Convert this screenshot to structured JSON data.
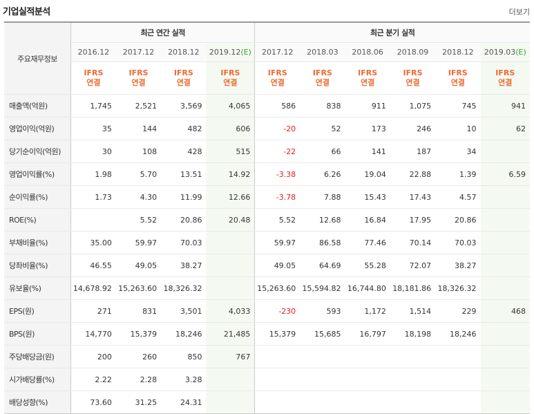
{
  "header": {
    "title": "기업실적분석",
    "more": "더보기"
  },
  "table": {
    "label_header": "주요재무정보",
    "annual_group": "최근 연간 실적",
    "quarter_group": "최근 분기 실적",
    "annual_periods": [
      "2016.12",
      "2017.12",
      "2018.12",
      "2019.12"
    ],
    "annual_estimate_mark": "(E)",
    "quarter_periods": [
      "2017.12",
      "2018.03",
      "2018.06",
      "2018.09",
      "2018.12",
      "2019.03"
    ],
    "quarter_estimate_mark": "(E)",
    "ifrs_top": "IFRS",
    "ifrs_bottom": "연결",
    "rows": [
      {
        "label": "매출액(억원)",
        "annual": [
          "1,745",
          "2,521",
          "3,569",
          "4,065"
        ],
        "quarter": [
          "586",
          "838",
          "911",
          "1,075",
          "745",
          "941"
        ]
      },
      {
        "label": "영업이익(억원)",
        "annual": [
          "35",
          "144",
          "482",
          "606"
        ],
        "quarter": [
          "-20",
          "52",
          "173",
          "246",
          "10",
          "62"
        ]
      },
      {
        "label": "당기순이익(억원)",
        "annual": [
          "30",
          "108",
          "428",
          "515"
        ],
        "quarter": [
          "-22",
          "66",
          "141",
          "187",
          "34",
          ""
        ]
      },
      {
        "label": "영업이익률(%)",
        "annual": [
          "1.98",
          "5.70",
          "13.51",
          "14.92"
        ],
        "quarter": [
          "-3.38",
          "6.26",
          "19.04",
          "22.88",
          "1.39",
          "6.59"
        ]
      },
      {
        "label": "순이익률(%)",
        "annual": [
          "1.73",
          "4.30",
          "11.99",
          "12.66"
        ],
        "quarter": [
          "-3.78",
          "7.88",
          "15.43",
          "17.43",
          "4.57",
          ""
        ]
      },
      {
        "label": "ROE(%)",
        "annual": [
          "",
          "5.52",
          "20.86",
          "20.48"
        ],
        "quarter": [
          "5.52",
          "12.68",
          "16.84",
          "17.95",
          "20.86",
          ""
        ]
      },
      {
        "label": "부채비율(%)",
        "annual": [
          "35.00",
          "59.97",
          "70.03",
          ""
        ],
        "quarter": [
          "59.97",
          "86.58",
          "77.46",
          "70.14",
          "70.03",
          ""
        ]
      },
      {
        "label": "당좌비율(%)",
        "annual": [
          "46.55",
          "49.05",
          "38.27",
          ""
        ],
        "quarter": [
          "49.05",
          "64.69",
          "55.28",
          "72.07",
          "38.27",
          ""
        ]
      },
      {
        "label": "유보율(%)",
        "annual": [
          "14,678.92",
          "15,263.60",
          "18,326.32",
          ""
        ],
        "quarter": [
          "15,263.60",
          "15,594.82",
          "16,744.80",
          "18,181.86",
          "18,326.32",
          ""
        ]
      },
      {
        "label": "EPS(원)",
        "annual": [
          "271",
          "831",
          "3,501",
          "4,033"
        ],
        "quarter": [
          "-230",
          "593",
          "1,172",
          "1,514",
          "229",
          "468"
        ]
      },
      {
        "label": "BPS(원)",
        "annual": [
          "14,770",
          "15,379",
          "18,246",
          "21,485"
        ],
        "quarter": [
          "15,379",
          "15,685",
          "16,797",
          "18,198",
          "18,246",
          ""
        ]
      },
      {
        "label": "주당배당금(원)",
        "annual": [
          "200",
          "260",
          "850",
          "767"
        ],
        "quarter": [
          "",
          "",
          "",
          "",
          "",
          ""
        ]
      },
      {
        "label": "시가배당률(%)",
        "annual": [
          "2.22",
          "2.28",
          "3.28",
          ""
        ],
        "quarter": [
          "",
          "",
          "",
          "",
          "",
          ""
        ]
      },
      {
        "label": "배당성향(%)",
        "annual": [
          "73.60",
          "31.25",
          "24.31",
          ""
        ],
        "quarter": [
          "",
          "",
          "",
          "",
          "",
          ""
        ]
      }
    ]
  },
  "colors": {
    "ifrs": "#f06a30",
    "negative": "#e02020",
    "estimate_bg": "#f4faf2",
    "estimate_mark": "#3aa035"
  }
}
